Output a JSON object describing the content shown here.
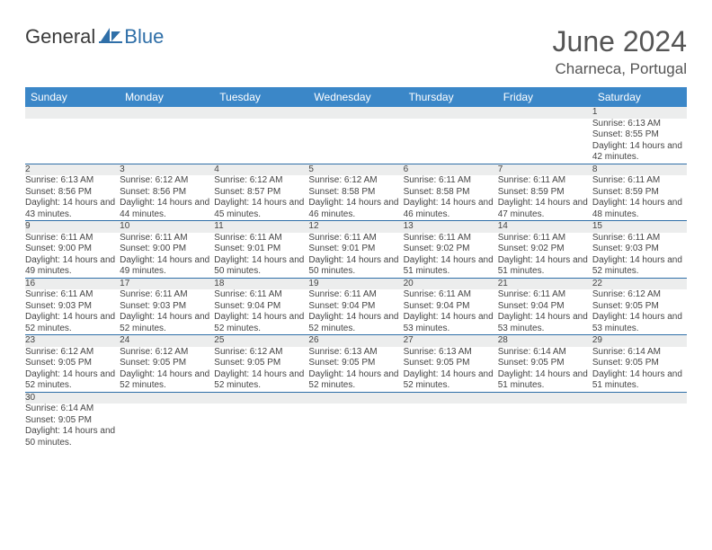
{
  "brand": {
    "part1": "General",
    "part2": "Blue"
  },
  "title": "June 2024",
  "location": "Charneca, Portugal",
  "colors": {
    "header_bg": "#3b87c8",
    "header_text": "#ffffff",
    "daynum_bg": "#eceded",
    "rule": "#2f6fa8",
    "brand_blue": "#2f6fa8",
    "text": "#444444"
  },
  "weekday_headers": [
    "Sunday",
    "Monday",
    "Tuesday",
    "Wednesday",
    "Thursday",
    "Friday",
    "Saturday"
  ],
  "weeks": [
    [
      null,
      null,
      null,
      null,
      null,
      null,
      {
        "n": "1",
        "sunrise": "6:13 AM",
        "sunset": "8:55 PM",
        "daylight": "14 hours and 42 minutes."
      }
    ],
    [
      {
        "n": "2",
        "sunrise": "6:13 AM",
        "sunset": "8:56 PM",
        "daylight": "14 hours and 43 minutes."
      },
      {
        "n": "3",
        "sunrise": "6:12 AM",
        "sunset": "8:56 PM",
        "daylight": "14 hours and 44 minutes."
      },
      {
        "n": "4",
        "sunrise": "6:12 AM",
        "sunset": "8:57 PM",
        "daylight": "14 hours and 45 minutes."
      },
      {
        "n": "5",
        "sunrise": "6:12 AM",
        "sunset": "8:58 PM",
        "daylight": "14 hours and 46 minutes."
      },
      {
        "n": "6",
        "sunrise": "6:11 AM",
        "sunset": "8:58 PM",
        "daylight": "14 hours and 46 minutes."
      },
      {
        "n": "7",
        "sunrise": "6:11 AM",
        "sunset": "8:59 PM",
        "daylight": "14 hours and 47 minutes."
      },
      {
        "n": "8",
        "sunrise": "6:11 AM",
        "sunset": "8:59 PM",
        "daylight": "14 hours and 48 minutes."
      }
    ],
    [
      {
        "n": "9",
        "sunrise": "6:11 AM",
        "sunset": "9:00 PM",
        "daylight": "14 hours and 49 minutes."
      },
      {
        "n": "10",
        "sunrise": "6:11 AM",
        "sunset": "9:00 PM",
        "daylight": "14 hours and 49 minutes."
      },
      {
        "n": "11",
        "sunrise": "6:11 AM",
        "sunset": "9:01 PM",
        "daylight": "14 hours and 50 minutes."
      },
      {
        "n": "12",
        "sunrise": "6:11 AM",
        "sunset": "9:01 PM",
        "daylight": "14 hours and 50 minutes."
      },
      {
        "n": "13",
        "sunrise": "6:11 AM",
        "sunset": "9:02 PM",
        "daylight": "14 hours and 51 minutes."
      },
      {
        "n": "14",
        "sunrise": "6:11 AM",
        "sunset": "9:02 PM",
        "daylight": "14 hours and 51 minutes."
      },
      {
        "n": "15",
        "sunrise": "6:11 AM",
        "sunset": "9:03 PM",
        "daylight": "14 hours and 52 minutes."
      }
    ],
    [
      {
        "n": "16",
        "sunrise": "6:11 AM",
        "sunset": "9:03 PM",
        "daylight": "14 hours and 52 minutes."
      },
      {
        "n": "17",
        "sunrise": "6:11 AM",
        "sunset": "9:03 PM",
        "daylight": "14 hours and 52 minutes."
      },
      {
        "n": "18",
        "sunrise": "6:11 AM",
        "sunset": "9:04 PM",
        "daylight": "14 hours and 52 minutes."
      },
      {
        "n": "19",
        "sunrise": "6:11 AM",
        "sunset": "9:04 PM",
        "daylight": "14 hours and 52 minutes."
      },
      {
        "n": "20",
        "sunrise": "6:11 AM",
        "sunset": "9:04 PM",
        "daylight": "14 hours and 53 minutes."
      },
      {
        "n": "21",
        "sunrise": "6:11 AM",
        "sunset": "9:04 PM",
        "daylight": "14 hours and 53 minutes."
      },
      {
        "n": "22",
        "sunrise": "6:12 AM",
        "sunset": "9:05 PM",
        "daylight": "14 hours and 53 minutes."
      }
    ],
    [
      {
        "n": "23",
        "sunrise": "6:12 AM",
        "sunset": "9:05 PM",
        "daylight": "14 hours and 52 minutes."
      },
      {
        "n": "24",
        "sunrise": "6:12 AM",
        "sunset": "9:05 PM",
        "daylight": "14 hours and 52 minutes."
      },
      {
        "n": "25",
        "sunrise": "6:12 AM",
        "sunset": "9:05 PM",
        "daylight": "14 hours and 52 minutes."
      },
      {
        "n": "26",
        "sunrise": "6:13 AM",
        "sunset": "9:05 PM",
        "daylight": "14 hours and 52 minutes."
      },
      {
        "n": "27",
        "sunrise": "6:13 AM",
        "sunset": "9:05 PM",
        "daylight": "14 hours and 52 minutes."
      },
      {
        "n": "28",
        "sunrise": "6:14 AM",
        "sunset": "9:05 PM",
        "daylight": "14 hours and 51 minutes."
      },
      {
        "n": "29",
        "sunrise": "6:14 AM",
        "sunset": "9:05 PM",
        "daylight": "14 hours and 51 minutes."
      }
    ],
    [
      {
        "n": "30",
        "sunrise": "6:14 AM",
        "sunset": "9:05 PM",
        "daylight": "14 hours and 50 minutes."
      },
      null,
      null,
      null,
      null,
      null,
      null
    ]
  ],
  "labels": {
    "sunrise_prefix": "Sunrise: ",
    "sunset_prefix": "Sunset: ",
    "daylight_prefix": "Daylight: "
  }
}
